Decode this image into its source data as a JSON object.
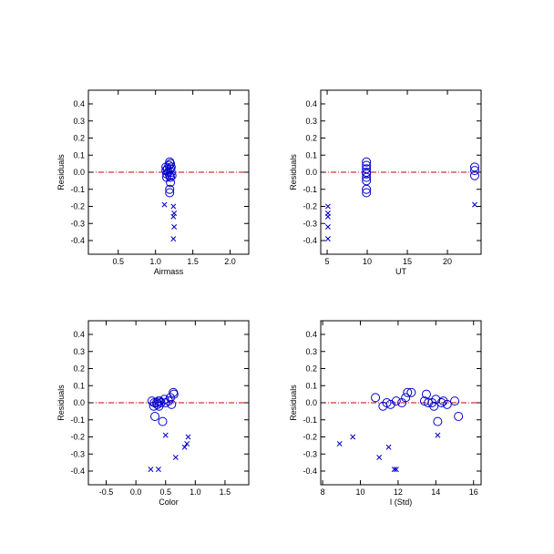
{
  "colors": {
    "background": "#ffffff",
    "axes": "#000000",
    "marker": "#0000cc",
    "zero_line": "#cc0000"
  },
  "chart_data": [
    {
      "type": "scatter",
      "xlabel": "Airmass",
      "ylabel": "Residuals",
      "xlim": [
        0.1,
        2.25
      ],
      "ylim": [
        -0.48,
        0.48
      ],
      "xticks": [
        0.5,
        1.0,
        1.5,
        2.0
      ],
      "xtick_labels": [
        "0.5",
        "1.0",
        "1.5",
        "2.0"
      ],
      "yticks": [
        -0.4,
        -0.3,
        -0.2,
        -0.1,
        0.0,
        0.1,
        0.2,
        0.3,
        0.4
      ],
      "ytick_labels": [
        "-0.4",
        "-0.3",
        "-0.2",
        "-0.1",
        "0.0",
        "0.1",
        "0.2",
        "0.3",
        "0.4"
      ],
      "zero_line": 0,
      "series": [
        {
          "marker": "circle",
          "points": [
            [
              1.14,
              0.03
            ],
            [
              1.14,
              0.01
            ],
            [
              1.15,
              -0.01
            ],
            [
              1.15,
              -0.03
            ],
            [
              1.16,
              0.02
            ],
            [
              1.17,
              0.0
            ],
            [
              1.18,
              0.04
            ],
            [
              1.19,
              0.06
            ],
            [
              1.19,
              -0.02
            ],
            [
              1.2,
              0.05
            ],
            [
              1.2,
              0.02
            ],
            [
              1.2,
              -0.06
            ],
            [
              1.19,
              -0.1
            ],
            [
              1.19,
              -0.12
            ],
            [
              1.2,
              -0.03
            ],
            [
              1.21,
              0.0
            ],
            [
              1.21,
              0.03
            ],
            [
              1.22,
              -0.02
            ]
          ]
        },
        {
          "marker": "x",
          "points": [
            [
              1.12,
              -0.19
            ],
            [
              1.24,
              -0.2
            ],
            [
              1.25,
              -0.24
            ],
            [
              1.24,
              -0.26
            ],
            [
              1.25,
              -0.32
            ],
            [
              1.24,
              -0.39
            ]
          ]
        }
      ]
    },
    {
      "type": "scatter",
      "xlabel": "UT",
      "ylabel": "Residuals",
      "xlim": [
        4.2,
        24.2
      ],
      "ylim": [
        -0.48,
        0.48
      ],
      "xticks": [
        5,
        10,
        15,
        20
      ],
      "xtick_labels": [
        "5",
        "10",
        "15",
        "20"
      ],
      "yticks": [
        -0.4,
        -0.3,
        -0.2,
        -0.1,
        0.0,
        0.1,
        0.2,
        0.3,
        0.4
      ],
      "ytick_labels": [
        "-0.4",
        "-0.3",
        "-0.2",
        "-0.1",
        "0.0",
        "0.1",
        "0.2",
        "0.3",
        "0.4"
      ],
      "zero_line": 0,
      "series": [
        {
          "marker": "circle",
          "points": [
            [
              9.9,
              0.06
            ],
            [
              9.9,
              0.04
            ],
            [
              9.9,
              0.02
            ],
            [
              9.9,
              0.0
            ],
            [
              9.9,
              -0.01
            ],
            [
              9.9,
              -0.03
            ],
            [
              9.9,
              -0.05
            ],
            [
              9.9,
              -0.1
            ],
            [
              9.9,
              -0.12
            ],
            [
              23.4,
              0.03
            ],
            [
              23.4,
              0.01
            ],
            [
              23.4,
              -0.02
            ]
          ]
        },
        {
          "marker": "x",
          "points": [
            [
              5.1,
              -0.2
            ],
            [
              5.1,
              -0.24
            ],
            [
              5.1,
              -0.26
            ],
            [
              5.1,
              -0.32
            ],
            [
              5.1,
              -0.39
            ],
            [
              23.4,
              -0.19
            ]
          ]
        }
      ]
    },
    {
      "type": "scatter",
      "xlabel": "Color",
      "ylabel": "Residuals",
      "xlim": [
        -0.8,
        1.9
      ],
      "ylim": [
        -0.48,
        0.48
      ],
      "xticks": [
        -0.5,
        0.0,
        0.5,
        1.0,
        1.5
      ],
      "xtick_labels": [
        "-0.5",
        "0.0",
        "0.5",
        "1.0",
        "1.5"
      ],
      "yticks": [
        -0.4,
        -0.3,
        -0.2,
        -0.1,
        0.0,
        0.1,
        0.2,
        0.3,
        0.4
      ],
      "ytick_labels": [
        "-0.4",
        "-0.3",
        "-0.2",
        "-0.1",
        "0.0",
        "0.1",
        "0.2",
        "0.3",
        "0.4"
      ],
      "zero_line": 0,
      "series": [
        {
          "marker": "circle",
          "points": [
            [
              0.27,
              0.01
            ],
            [
              0.3,
              -0.02
            ],
            [
              0.31,
              0.0
            ],
            [
              0.32,
              -0.08
            ],
            [
              0.35,
              0.0
            ],
            [
              0.36,
              -0.01
            ],
            [
              0.38,
              0.01
            ],
            [
              0.39,
              -0.02
            ],
            [
              0.42,
              0.0
            ],
            [
              0.45,
              -0.11
            ],
            [
              0.48,
              0.02
            ],
            [
              0.5,
              0.0
            ],
            [
              0.55,
              0.01
            ],
            [
              0.58,
              0.03
            ],
            [
              0.6,
              -0.01
            ],
            [
              0.63,
              0.06
            ],
            [
              0.64,
              0.05
            ],
            [
              0.4,
              0.01
            ]
          ]
        },
        {
          "marker": "x",
          "points": [
            [
              0.25,
              -0.39
            ],
            [
              0.38,
              -0.39
            ],
            [
              0.5,
              -0.19
            ],
            [
              0.67,
              -0.32
            ],
            [
              0.82,
              -0.26
            ],
            [
              0.86,
              -0.24
            ],
            [
              0.88,
              -0.2
            ]
          ]
        }
      ]
    },
    {
      "type": "scatter",
      "xlabel": "I (Std)",
      "ylabel": "Residuals",
      "xlim": [
        7.9,
        16.4
      ],
      "ylim": [
        -0.48,
        0.48
      ],
      "xticks": [
        8,
        10,
        12,
        14,
        16
      ],
      "xtick_labels": [
        "8",
        "10",
        "12",
        "14",
        "16"
      ],
      "yticks": [
        -0.4,
        -0.3,
        -0.2,
        -0.1,
        0.0,
        0.1,
        0.2,
        0.3,
        0.4
      ],
      "ytick_labels": [
        "-0.4",
        "-0.3",
        "-0.2",
        "-0.1",
        "0.0",
        "0.1",
        "0.2",
        "0.3",
        "0.4"
      ],
      "zero_line": 0,
      "series": [
        {
          "marker": "circle",
          "points": [
            [
              10.8,
              0.03
            ],
            [
              11.2,
              -0.02
            ],
            [
              11.4,
              0.0
            ],
            [
              11.6,
              -0.01
            ],
            [
              11.9,
              0.01
            ],
            [
              12.2,
              0.0
            ],
            [
              12.4,
              0.03
            ],
            [
              12.5,
              0.06
            ],
            [
              12.7,
              0.06
            ],
            [
              13.4,
              0.01
            ],
            [
              13.5,
              0.05
            ],
            [
              13.6,
              0.0
            ],
            [
              13.8,
              0.0
            ],
            [
              13.9,
              -0.02
            ],
            [
              14.0,
              0.02
            ],
            [
              14.1,
              -0.11
            ],
            [
              14.3,
              0.0
            ],
            [
              14.4,
              0.01
            ],
            [
              14.6,
              -0.01
            ],
            [
              15.0,
              0.01
            ],
            [
              15.2,
              -0.08
            ]
          ]
        },
        {
          "marker": "x",
          "points": [
            [
              8.9,
              -0.24
            ],
            [
              9.6,
              -0.2
            ],
            [
              11.0,
              -0.32
            ],
            [
              11.5,
              -0.26
            ],
            [
              11.8,
              -0.39
            ],
            [
              11.9,
              -0.39
            ],
            [
              14.1,
              -0.19
            ]
          ]
        }
      ]
    }
  ]
}
